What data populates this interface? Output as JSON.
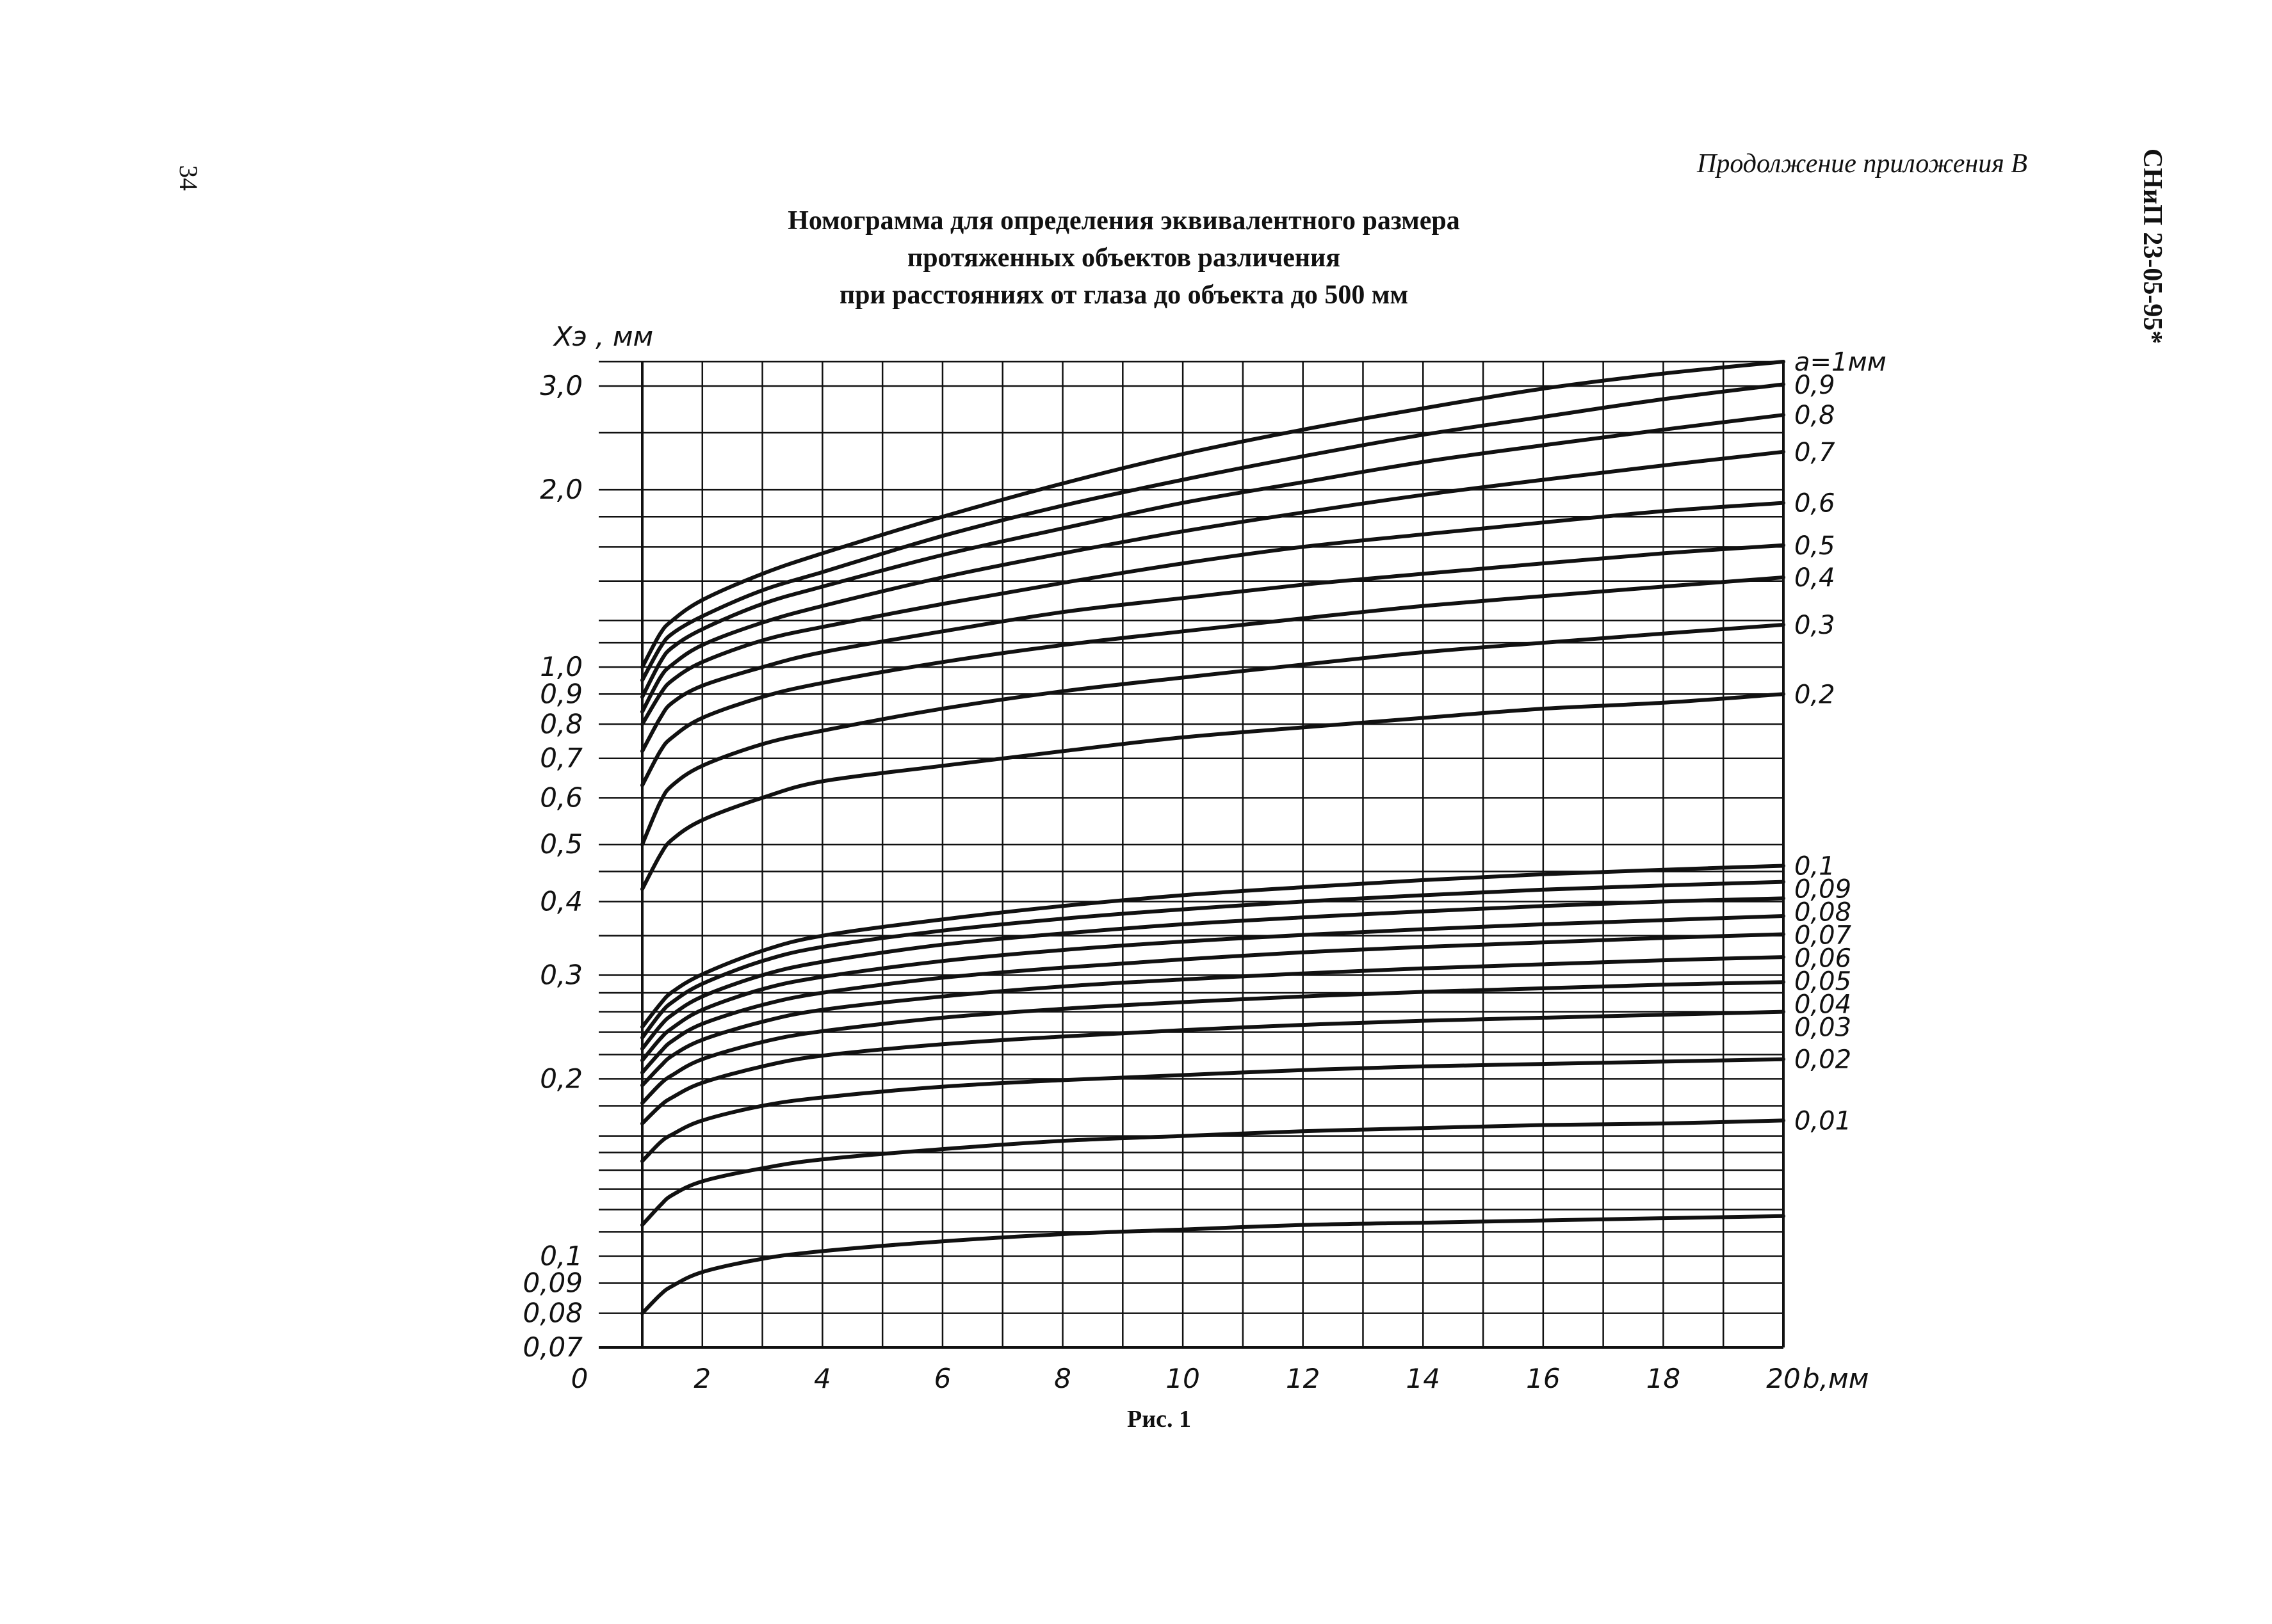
{
  "header": {
    "page_number": "34",
    "continuation": "Продолжение приложения В",
    "doc_code": "СНиП 23-05-95*"
  },
  "title_lines": [
    "Номограмма для определения эквивалентного размера",
    "протяженных объектов различения",
    "при расстояниях от глаза до объекта до 500 мм"
  ],
  "caption": "Рис. 1",
  "colors": {
    "ink": "#111111",
    "background": "#ffffff"
  },
  "chart_data": {
    "type": "line",
    "title": "Номограмма для определения эквивалентного размера протяженных объектов различения при расстояниях от глаза до объекта до 500 мм",
    "xlabel": "b,мм",
    "ylabel": "Xэ , мм",
    "x_tick_labels": [
      "0",
      "2",
      "4",
      "6",
      "8",
      "10",
      "12",
      "14",
      "16",
      "18",
      "20"
    ],
    "x_ticks": [
      0,
      2,
      4,
      6,
      8,
      10,
      12,
      14,
      16,
      18,
      20
    ],
    "xlim": [
      0,
      20
    ],
    "x_grid_step": 1,
    "y_scale": "log",
    "ylim": [
      0.07,
      3.4
    ],
    "y_ticks": [
      {
        "value": 3.0,
        "label": "3,0"
      },
      {
        "value": 2.0,
        "label": "2,0"
      },
      {
        "value": 1.0,
        "label": "1,0"
      },
      {
        "value": 0.9,
        "label": "0,9"
      },
      {
        "value": 0.8,
        "label": "0,8"
      },
      {
        "value": 0.7,
        "label": "0,7"
      },
      {
        "value": 0.6,
        "label": "0,6"
      },
      {
        "value": 0.5,
        "label": "0,5"
      },
      {
        "value": 0.4,
        "label": "0,4"
      },
      {
        "value": 0.3,
        "label": "0,3"
      },
      {
        "value": 0.2,
        "label": "0,2"
      },
      {
        "value": 0.1,
        "label": "0,1"
      },
      {
        "value": 0.09,
        "label": "0,09"
      },
      {
        "value": 0.08,
        "label": "0,08"
      },
      {
        "value": 0.07,
        "label": "0,07"
      }
    ],
    "y_grid": [
      0.07,
      0.08,
      0.09,
      0.1,
      0.11,
      0.12,
      0.13,
      0.14,
      0.15,
      0.16,
      0.18,
      0.2,
      0.22,
      0.24,
      0.26,
      0.28,
      0.3,
      0.35,
      0.4,
      0.45,
      0.5,
      0.6,
      0.7,
      0.8,
      0.9,
      1.0,
      1.1,
      1.2,
      1.4,
      1.6,
      1.8,
      2.0,
      2.5,
      3.0,
      3.3
    ],
    "grid": true,
    "series": [
      {
        "name": "а=1мм",
        "x": [
          1,
          1.3,
          1.5,
          2,
          3,
          4,
          6,
          8,
          10,
          12,
          14,
          16,
          18,
          20
        ],
        "y": [
          1.0,
          1.14,
          1.2,
          1.3,
          1.44,
          1.56,
          1.8,
          2.05,
          2.3,
          2.53,
          2.75,
          2.97,
          3.15,
          3.3
        ]
      },
      {
        "name": "0,9",
        "x": [
          1,
          1.3,
          1.5,
          2,
          3,
          4,
          6,
          8,
          10,
          12,
          14,
          16,
          18,
          20
        ],
        "y": [
          0.95,
          1.08,
          1.14,
          1.22,
          1.35,
          1.45,
          1.67,
          1.88,
          2.08,
          2.28,
          2.48,
          2.66,
          2.85,
          3.02
        ]
      },
      {
        "name": "0,8",
        "x": [
          1,
          1.3,
          1.5,
          2,
          3,
          4,
          6,
          8,
          10,
          12,
          14,
          16,
          18,
          20
        ],
        "y": [
          0.89,
          1.02,
          1.08,
          1.16,
          1.28,
          1.37,
          1.55,
          1.72,
          1.9,
          2.06,
          2.23,
          2.38,
          2.53,
          2.68
        ]
      },
      {
        "name": "0,7",
        "x": [
          1,
          1.3,
          1.5,
          2,
          3,
          4,
          6,
          8,
          10,
          12,
          14,
          16,
          18,
          20
        ],
        "y": [
          0.84,
          0.96,
          1.01,
          1.09,
          1.19,
          1.27,
          1.42,
          1.56,
          1.7,
          1.83,
          1.96,
          2.08,
          2.2,
          2.32
        ]
      },
      {
        "name": "0,6",
        "x": [
          1,
          1.3,
          1.5,
          2,
          3,
          4,
          6,
          8,
          10,
          12,
          14,
          16,
          18,
          20
        ],
        "y": [
          0.8,
          0.9,
          0.95,
          1.02,
          1.11,
          1.17,
          1.28,
          1.39,
          1.5,
          1.6,
          1.68,
          1.76,
          1.84,
          1.9
        ]
      },
      {
        "name": "0,5",
        "x": [
          1,
          1.3,
          1.5,
          2,
          3,
          4,
          6,
          8,
          10,
          12,
          14,
          16,
          18,
          20
        ],
        "y": [
          0.72,
          0.82,
          0.87,
          0.93,
          1.0,
          1.06,
          1.15,
          1.24,
          1.31,
          1.38,
          1.44,
          1.5,
          1.56,
          1.61
        ]
      },
      {
        "name": "0,4",
        "x": [
          1,
          1.3,
          1.5,
          2,
          3,
          4,
          6,
          8,
          10,
          12,
          14,
          16,
          18,
          20
        ],
        "y": [
          0.63,
          0.72,
          0.76,
          0.82,
          0.89,
          0.94,
          1.02,
          1.09,
          1.15,
          1.21,
          1.27,
          1.32,
          1.37,
          1.42
        ]
      },
      {
        "name": "0,3",
        "x": [
          1,
          1.3,
          1.5,
          2,
          3,
          4,
          6,
          8,
          10,
          12,
          14,
          16,
          18,
          20
        ],
        "y": [
          0.5,
          0.59,
          0.63,
          0.68,
          0.74,
          0.78,
          0.85,
          0.91,
          0.96,
          1.01,
          1.06,
          1.1,
          1.14,
          1.18
        ]
      },
      {
        "name": "0,2",
        "x": [
          1,
          1.3,
          1.5,
          2,
          3,
          4,
          6,
          8,
          10,
          12,
          14,
          16,
          18,
          20
        ],
        "y": [
          0.42,
          0.48,
          0.51,
          0.55,
          0.6,
          0.64,
          0.68,
          0.72,
          0.76,
          0.79,
          0.82,
          0.85,
          0.87,
          0.9
        ]
      },
      {
        "name": "0,1",
        "x": [
          1,
          1.3,
          1.5,
          2,
          3,
          4,
          6,
          8,
          10,
          12,
          14,
          16,
          18,
          20
        ],
        "y": [
          0.245,
          0.268,
          0.281,
          0.301,
          0.33,
          0.35,
          0.373,
          0.393,
          0.41,
          0.423,
          0.435,
          0.445,
          0.453,
          0.46
        ]
      },
      {
        "name": "0,09",
        "x": [
          1,
          1.3,
          1.5,
          2,
          3,
          4,
          6,
          8,
          10,
          12,
          14,
          16,
          18,
          20
        ],
        "y": [
          0.235,
          0.258,
          0.27,
          0.29,
          0.317,
          0.335,
          0.357,
          0.374,
          0.388,
          0.4,
          0.41,
          0.419,
          0.426,
          0.432
        ]
      },
      {
        "name": "0,08",
        "x": [
          1,
          1.3,
          1.5,
          2,
          3,
          4,
          6,
          8,
          10,
          12,
          14,
          16,
          18,
          20
        ],
        "y": [
          0.225,
          0.246,
          0.257,
          0.276,
          0.3,
          0.316,
          0.338,
          0.353,
          0.366,
          0.376,
          0.385,
          0.393,
          0.4,
          0.405
        ]
      },
      {
        "name": "0,07",
        "x": [
          1,
          1.3,
          1.5,
          2,
          3,
          4,
          6,
          8,
          10,
          12,
          14,
          16,
          18,
          20
        ],
        "y": [
          0.215,
          0.234,
          0.244,
          0.262,
          0.284,
          0.298,
          0.317,
          0.331,
          0.342,
          0.351,
          0.359,
          0.366,
          0.372,
          0.378
        ]
      },
      {
        "name": "0,06",
        "x": [
          1,
          1.3,
          1.5,
          2,
          3,
          4,
          6,
          8,
          10,
          12,
          14,
          16,
          18,
          20
        ],
        "y": [
          0.205,
          0.222,
          0.232,
          0.248,
          0.267,
          0.28,
          0.297,
          0.309,
          0.319,
          0.328,
          0.335,
          0.341,
          0.347,
          0.352
        ]
      },
      {
        "name": "0,05",
        "x": [
          1,
          1.3,
          1.5,
          2,
          3,
          4,
          6,
          8,
          10,
          12,
          14,
          16,
          18,
          20
        ],
        "y": [
          0.195,
          0.21,
          0.219,
          0.233,
          0.25,
          0.262,
          0.276,
          0.287,
          0.295,
          0.302,
          0.308,
          0.313,
          0.318,
          0.322
        ]
      },
      {
        "name": "0,04",
        "x": [
          1,
          1.3,
          1.5,
          2,
          3,
          4,
          6,
          8,
          10,
          12,
          14,
          16,
          18,
          20
        ],
        "y": [
          0.182,
          0.196,
          0.203,
          0.216,
          0.231,
          0.241,
          0.254,
          0.263,
          0.27,
          0.276,
          0.281,
          0.285,
          0.289,
          0.292
        ]
      },
      {
        "name": "0,03",
        "x": [
          1,
          1.3,
          1.5,
          2,
          3,
          4,
          6,
          8,
          10,
          12,
          14,
          16,
          18,
          20
        ],
        "y": [
          0.168,
          0.18,
          0.186,
          0.197,
          0.21,
          0.219,
          0.229,
          0.236,
          0.242,
          0.247,
          0.251,
          0.254,
          0.257,
          0.26
        ]
      },
      {
        "name": "0,02",
        "x": [
          1,
          1.3,
          1.5,
          2,
          3,
          4,
          6,
          8,
          10,
          12,
          14,
          16,
          18,
          20
        ],
        "y": [
          0.145,
          0.156,
          0.161,
          0.17,
          0.18,
          0.186,
          0.194,
          0.199,
          0.203,
          0.207,
          0.21,
          0.212,
          0.214,
          0.216
        ]
      },
      {
        "name": "0,01",
        "x": [
          1,
          1.3,
          1.5,
          2,
          3,
          4,
          6,
          8,
          10,
          12,
          14,
          16,
          18,
          20
        ],
        "y": [
          0.113,
          0.122,
          0.127,
          0.134,
          0.141,
          0.146,
          0.152,
          0.157,
          0.16,
          0.163,
          0.165,
          0.167,
          0.168,
          0.17
        ]
      },
      {
        "name": "",
        "x": [
          1,
          1.3,
          1.5,
          2,
          3,
          4,
          6,
          8,
          10,
          12,
          14,
          16,
          18,
          20
        ],
        "y": [
          0.08,
          0.086,
          0.089,
          0.094,
          0.099,
          0.102,
          0.106,
          0.109,
          0.111,
          0.113,
          0.114,
          0.115,
          0.116,
          0.117
        ]
      }
    ]
  }
}
